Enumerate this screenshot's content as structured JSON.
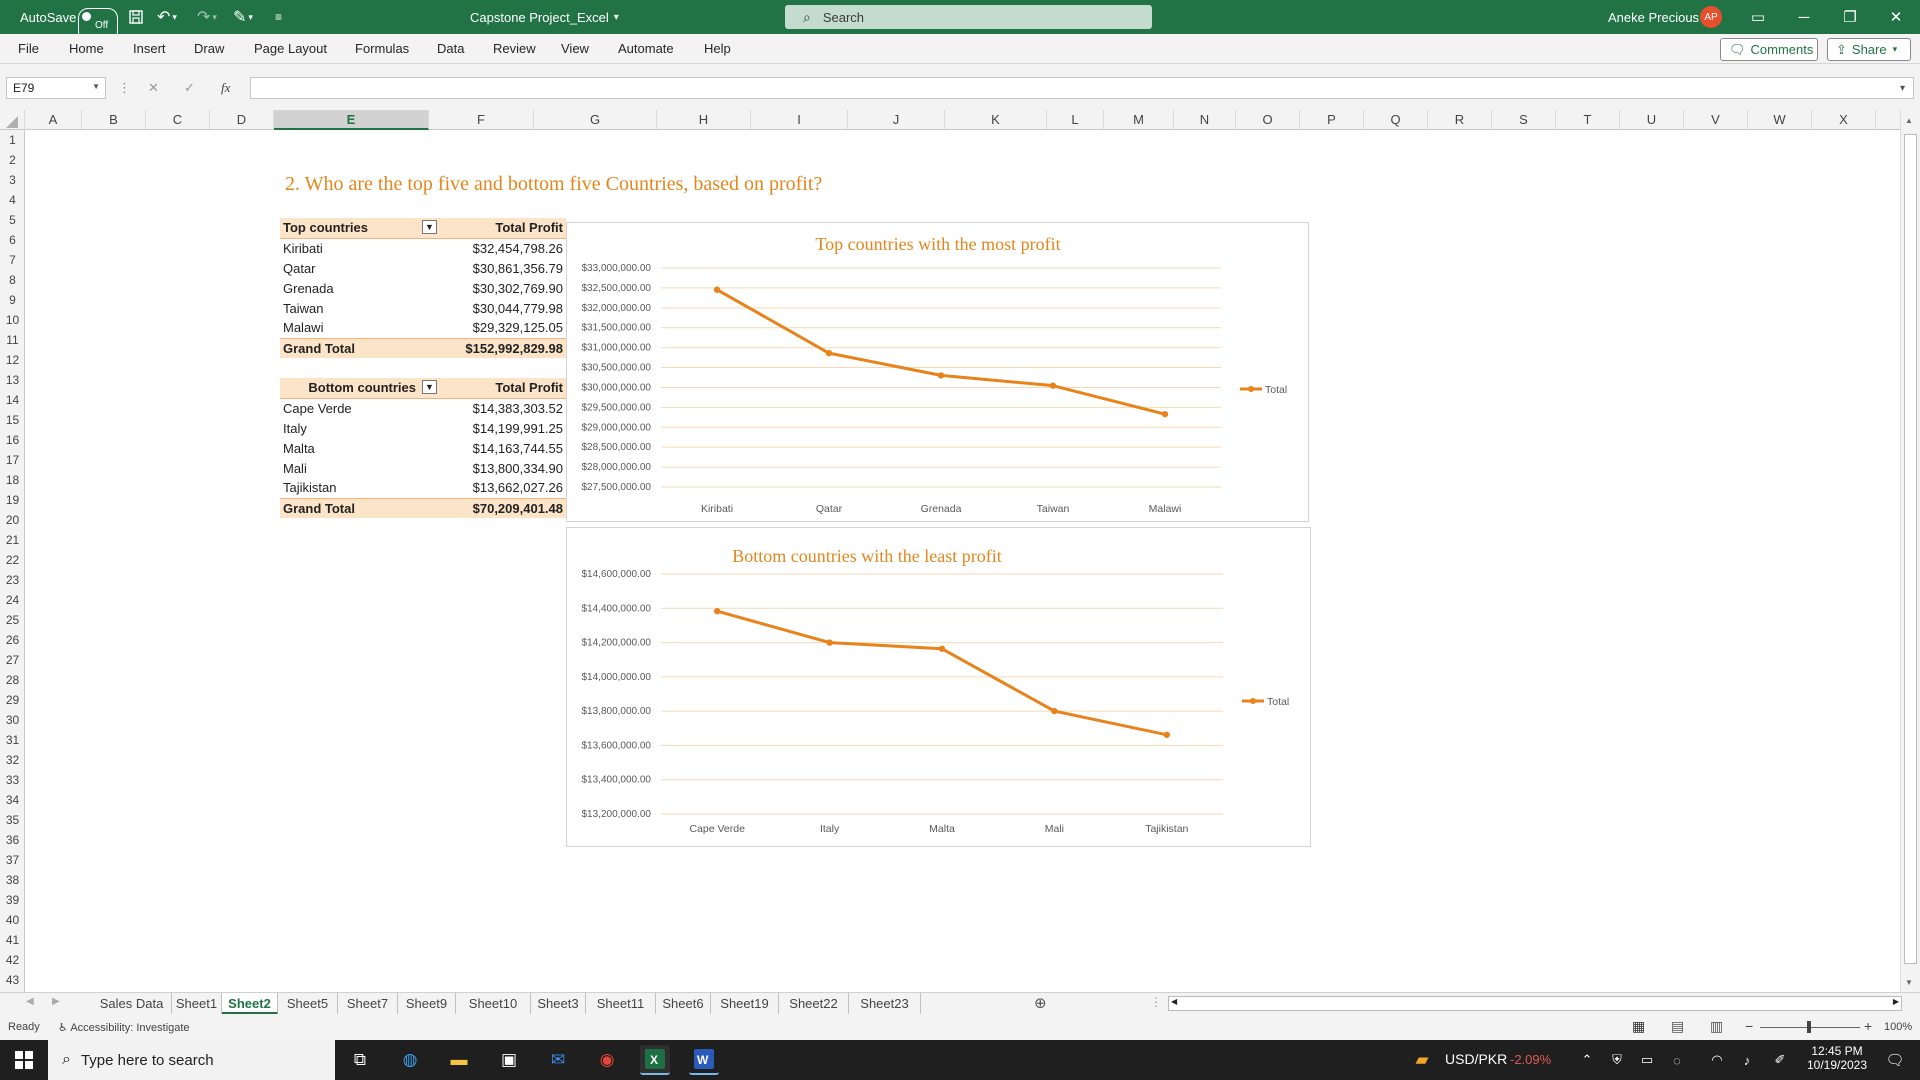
{
  "titlebar": {
    "autosave_label": "AutoSave",
    "autosave_state": "Off",
    "doc_title": "Capstone Project_Excel",
    "search_placeholder": "Search",
    "user_name": "Aneke Precious",
    "user_initials": "AP"
  },
  "menu": {
    "items": [
      "File",
      "Home",
      "Insert",
      "Draw",
      "Page Layout",
      "Formulas",
      "Data",
      "Review",
      "View",
      "Automate",
      "Help"
    ],
    "comments_label": "Comments",
    "share_label": "Share"
  },
  "formula_bar": {
    "name_box": "E79",
    "fx_label": "fx",
    "value": ""
  },
  "columns": [
    "A",
    "B",
    "C",
    "D",
    "E",
    "F",
    "G",
    "H",
    "I",
    "J",
    "K",
    "L",
    "M",
    "N",
    "O",
    "P",
    "Q",
    "R",
    "S",
    "T",
    "U",
    "V",
    "W",
    "X"
  ],
  "selected_column": "E",
  "rows": [
    "1",
    "2",
    "3",
    "4",
    "5",
    "6",
    "7",
    "8",
    "9",
    "10",
    "11",
    "12",
    "13",
    "14",
    "15",
    "16",
    "17",
    "18",
    "19",
    "20",
    "21",
    "22",
    "23",
    "24",
    "25",
    "26",
    "27",
    "28",
    "29",
    "30",
    "31",
    "32",
    "33",
    "34",
    "35",
    "36",
    "37",
    "38",
    "39",
    "40",
    "41",
    "42",
    "43"
  ],
  "question": "2. Who are the top five and bottom five Countries, based on profit?",
  "top_table": {
    "header_label": "Top countries",
    "header_value": "Total Profit",
    "rows": [
      {
        "label": "Kiribati",
        "value": "$32,454,798.26"
      },
      {
        "label": "Qatar",
        "value": "$30,861,356.79"
      },
      {
        "label": "Grenada",
        "value": "$30,302,769.90"
      },
      {
        "label": "Taiwan",
        "value": "$30,044,779.98"
      },
      {
        "label": "Malawi",
        "value": "$29,329,125.05"
      }
    ],
    "total_label": "Grand Total",
    "total_value": "$152,992,829.98"
  },
  "bottom_table": {
    "header_label": "Bottom countries",
    "header_value": "Total Profit",
    "rows": [
      {
        "label": "Cape Verde",
        "value": "$14,383,303.52"
      },
      {
        "label": "Italy",
        "value": "$14,199,991.25"
      },
      {
        "label": "Malta",
        "value": "$14,163,744.55"
      },
      {
        "label": "Mali",
        "value": "$13,800,334.90"
      },
      {
        "label": "Tajikistan",
        "value": "$13,662,027.26"
      }
    ],
    "total_label": "Grand Total",
    "total_value": "$70,209,401.48"
  },
  "chart_data": [
    {
      "type": "line",
      "title": "Top countries with the most profit",
      "categories": [
        "Kiribati",
        "Qatar",
        "Grenada",
        "Taiwan",
        "Malawi"
      ],
      "series": [
        {
          "name": "Total",
          "values": [
            32454798.26,
            30861356.79,
            30302769.9,
            30044779.98,
            29329125.05
          ]
        }
      ],
      "ylim": [
        27500000,
        33000000
      ],
      "yticks": [
        "$33,000,000.00",
        "$32,500,000.00",
        "$32,000,000.00",
        "$31,500,000.00",
        "$31,000,000.00",
        "$30,500,000.00",
        "$30,000,000.00",
        "$29,500,000.00",
        "$29,000,000.00",
        "$28,500,000.00",
        "$28,000,000.00",
        "$27,500,000.00"
      ],
      "legend": "right",
      "grid": true,
      "color": "#e8821a"
    },
    {
      "type": "line",
      "title": "Bottom countries with the least profit",
      "categories": [
        "Cape Verde",
        "Italy",
        "Malta",
        "Mali",
        "Tajikistan"
      ],
      "series": [
        {
          "name": "Total",
          "values": [
            14383303.52,
            14199991.25,
            14163744.55,
            13800334.9,
            13662027.26
          ]
        }
      ],
      "ylim": [
        13200000,
        14600000
      ],
      "yticks": [
        "$14,600,000.00",
        "$14,400,000.00",
        "$14,200,000.00",
        "$14,000,000.00",
        "$13,800,000.00",
        "$13,600,000.00",
        "$13,400,000.00",
        "$13,200,000.00"
      ],
      "legend": "right",
      "grid": true,
      "color": "#e8821a"
    }
  ],
  "sheets": {
    "tabs": [
      "Sales Data",
      "Sheet1",
      "Sheet2",
      "Sheet5",
      "Sheet7",
      "Sheet9",
      "Sheet10",
      "Sheet3",
      "Sheet11",
      "Sheet6",
      "Sheet19",
      "Sheet22",
      "Sheet23"
    ],
    "active": "Sheet2"
  },
  "status": {
    "ready": "Ready",
    "accessibility": "Accessibility: Investigate",
    "zoom": "100%"
  },
  "taskbar": {
    "search_placeholder": "Type here to search",
    "ticker_label": "USD/PKR",
    "ticker_change": "-2.09%",
    "time": "12:45 PM",
    "date": "10/19/2023"
  },
  "colors": {
    "excel_green": "#217346",
    "accent_orange": "#e3861e",
    "pivot_header": "#fce4c8",
    "negative": "#e05a5a"
  }
}
